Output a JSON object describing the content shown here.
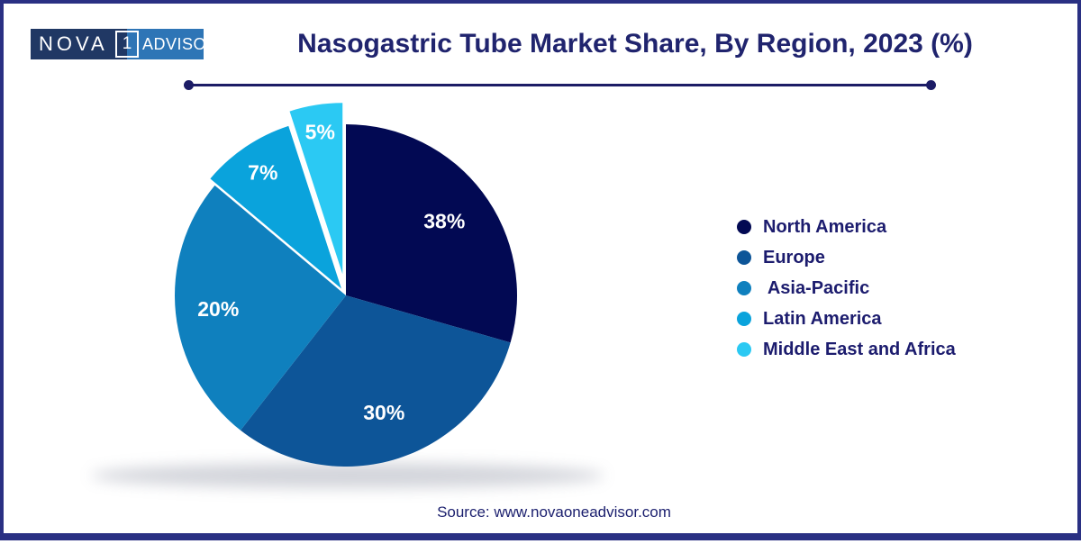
{
  "frame": {
    "border_color": "#2A3083",
    "background": "#FFFFFF"
  },
  "header": {
    "logo": {
      "text_left": "NOVA",
      "text_box": "1",
      "text_right": "ADVISOR",
      "left_bg": "#203864",
      "right_bg": "#2E75B6",
      "text_color": "#FFFFFF"
    },
    "title": "Nasogastric Tube Market Share, By Region, 2023 (%)",
    "title_color": "#20246E",
    "divider_color": "#1C1C66"
  },
  "chart_data": {
    "type": "pie",
    "title": "Nasogastric Tube Market Share, By Region, 2023 (%)",
    "categories": [
      "North America",
      "Europe",
      "Asia-Pacific",
      "Latin America",
      "Middle East and Africa"
    ],
    "values": [
      38,
      30,
      20,
      7,
      5
    ],
    "labels": [
      "38%",
      "30%",
      "20%",
      "7%",
      "5%"
    ],
    "unit": "%",
    "colors": [
      "#020953",
      "#0D5598",
      "#0F80BE",
      "#0AA3DC",
      "#2BC9F3"
    ],
    "label_color": "#FFFFFF",
    "legend_position": "right",
    "legend_text_color": "#1C1C6E",
    "exploded_slices": [
      "Latin America",
      "Middle East and Africa"
    ]
  },
  "footer": {
    "source": "Source: www.novaoneadvisor.com",
    "source_color": "#1B1F6E"
  }
}
